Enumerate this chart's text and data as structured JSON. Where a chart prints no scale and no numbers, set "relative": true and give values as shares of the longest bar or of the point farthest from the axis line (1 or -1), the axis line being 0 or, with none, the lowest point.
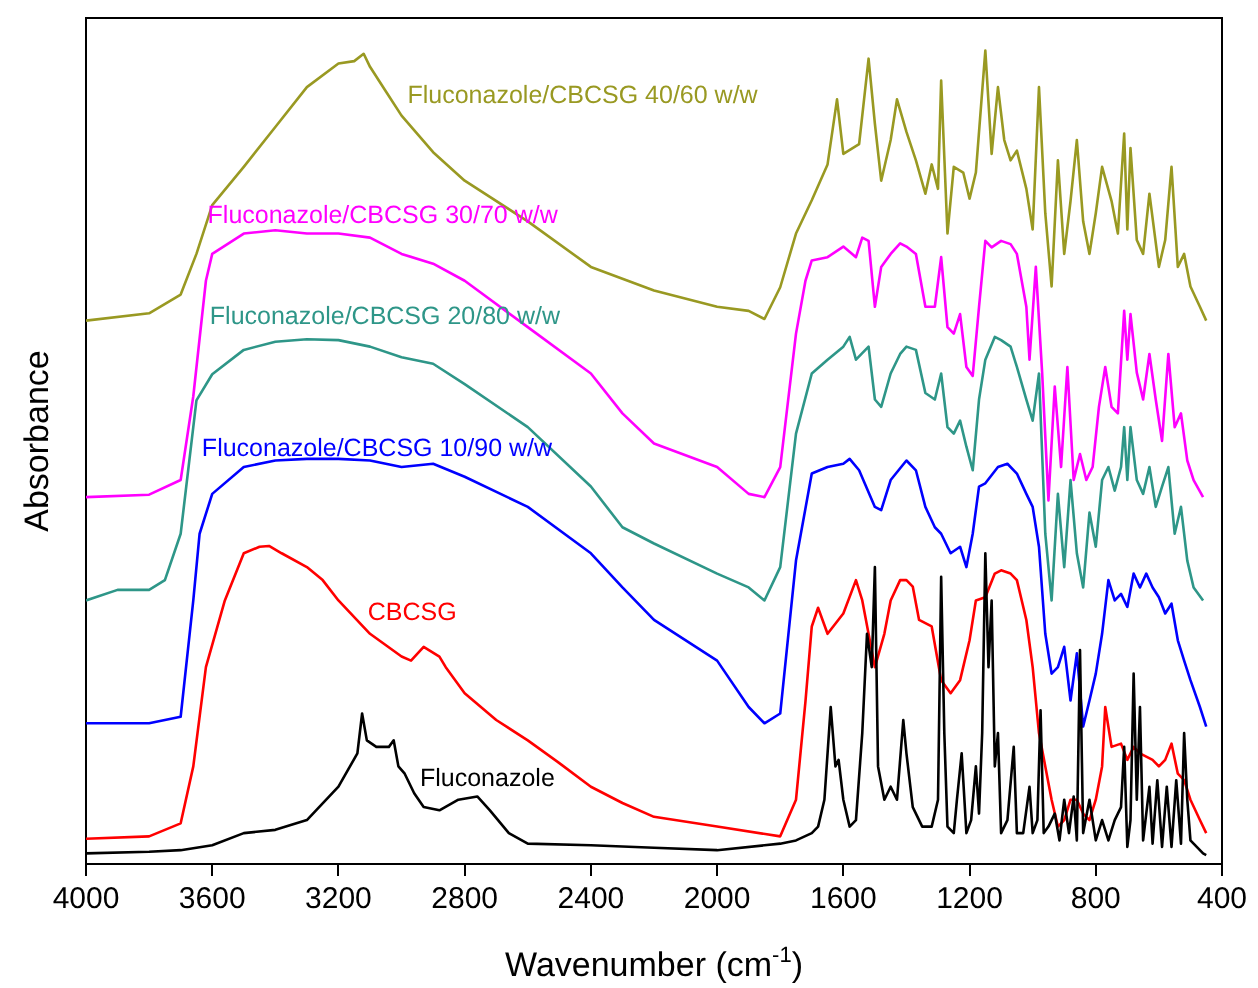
{
  "chart_data": {
    "type": "line",
    "relative": true,
    "xlabel": "Wavenumber (cm$^{-1}$)",
    "ylabel": "Absorbance",
    "xlim": [
      4000,
      400
    ],
    "xticks": [
      4000,
      3600,
      3200,
      2800,
      2400,
      2000,
      1600,
      1200,
      800,
      400
    ],
    "grid": false,
    "legend": false,
    "marker": "none",
    "line_style": "solid",
    "series": [
      {
        "name": "Fluconazole",
        "color": "#000000",
        "x": [
          4000,
          3800,
          3700,
          3600,
          3500,
          3400,
          3300,
          3200,
          3140,
          3125,
          3110,
          3080,
          3040,
          3025,
          3010,
          2990,
          2960,
          2930,
          2880,
          2820,
          2760,
          2720,
          2660,
          2600,
          2400,
          2200,
          2000,
          1800,
          1750,
          1700,
          1680,
          1660,
          1640,
          1625,
          1615,
          1600,
          1580,
          1560,
          1540,
          1525,
          1510,
          1500,
          1490,
          1470,
          1450,
          1430,
          1410,
          1400,
          1380,
          1350,
          1320,
          1300,
          1290,
          1280,
          1270,
          1250,
          1240,
          1225,
          1210,
          1195,
          1180,
          1170,
          1160,
          1150,
          1140,
          1130,
          1120,
          1110,
          1100,
          1080,
          1060,
          1050,
          1030,
          1010,
          1000,
          985,
          975,
          965,
          950,
          930,
          915,
          900,
          885,
          870,
          860,
          850,
          840,
          820,
          800,
          780,
          760,
          740,
          720,
          710,
          700,
          690,
          680,
          670,
          660,
          650,
          630,
          620,
          605,
          590,
          575,
          560,
          545,
          530,
          520,
          510,
          500,
          480,
          460,
          450
        ],
        "values": [
          0.013,
          0.015,
          0.017,
          0.023,
          0.038,
          0.042,
          0.054,
          0.095,
          0.136,
          0.185,
          0.152,
          0.144,
          0.144,
          0.152,
          0.12,
          0.111,
          0.087,
          0.07,
          0.066,
          0.079,
          0.083,
          0.066,
          0.038,
          0.025,
          0.023,
          0.02,
          0.017,
          0.025,
          0.029,
          0.038,
          0.046,
          0.079,
          0.193,
          0.12,
          0.128,
          0.079,
          0.046,
          0.054,
          0.161,
          0.283,
          0.242,
          0.365,
          0.12,
          0.079,
          0.095,
          0.079,
          0.177,
          0.136,
          0.07,
          0.046,
          0.046,
          0.079,
          0.353,
          0.161,
          0.046,
          0.038,
          0.079,
          0.136,
          0.038,
          0.054,
          0.12,
          0.062,
          0.161,
          0.382,
          0.242,
          0.324,
          0.12,
          0.161,
          0.038,
          0.054,
          0.144,
          0.038,
          0.038,
          0.095,
          0.038,
          0.054,
          0.189,
          0.038,
          0.046,
          0.062,
          0.029,
          0.079,
          0.038,
          0.083,
          0.029,
          0.263,
          0.038,
          0.079,
          0.029,
          0.054,
          0.029,
          0.054,
          0.07,
          0.144,
          0.021,
          0.054,
          0.234,
          0.079,
          0.193,
          0.029,
          0.095,
          0.025,
          0.103,
          0.021,
          0.095,
          0.021,
          0.103,
          0.025,
          0.161,
          0.079,
          0.029,
          0.021,
          0.013,
          0.011
        ]
      },
      {
        "name": "CBCSG",
        "color": "#ff0000",
        "x": [
          4000,
          3800,
          3700,
          3660,
          3620,
          3560,
          3500,
          3450,
          3420,
          3380,
          3300,
          3250,
          3200,
          3100,
          3000,
          2970,
          2930,
          2880,
          2860,
          2800,
          2700,
          2600,
          2500,
          2400,
          2300,
          2200,
          2000,
          1800,
          1750,
          1720,
          1700,
          1680,
          1650,
          1600,
          1560,
          1540,
          1500,
          1470,
          1450,
          1420,
          1400,
          1380,
          1360,
          1320,
          1290,
          1260,
          1230,
          1200,
          1180,
          1150,
          1120,
          1100,
          1070,
          1050,
          1020,
          1000,
          980,
          960,
          940,
          920,
          900,
          880,
          860,
          840,
          820,
          800,
          780,
          770,
          750,
          720,
          700,
          680,
          660,
          640,
          620,
          600,
          580,
          560,
          540,
          520,
          500,
          470,
          450
        ],
        "values": [
          0.031,
          0.034,
          0.05,
          0.12,
          0.242,
          0.324,
          0.382,
          0.39,
          0.391,
          0.382,
          0.365,
          0.349,
          0.324,
          0.283,
          0.255,
          0.25,
          0.267,
          0.255,
          0.242,
          0.21,
          0.177,
          0.152,
          0.124,
          0.095,
          0.075,
          0.058,
          0.046,
          0.034,
          0.079,
          0.2,
          0.292,
          0.315,
          0.283,
          0.308,
          0.349,
          0.324,
          0.242,
          0.283,
          0.324,
          0.349,
          0.349,
          0.341,
          0.3,
          0.292,
          0.226,
          0.21,
          0.226,
          0.275,
          0.324,
          0.328,
          0.357,
          0.361,
          0.357,
          0.349,
          0.3,
          0.242,
          0.161,
          0.12,
          0.079,
          0.046,
          0.054,
          0.079,
          0.079,
          0.062,
          0.054,
          0.079,
          0.12,
          0.193,
          0.144,
          0.148,
          0.128,
          0.144,
          0.136,
          0.132,
          0.128,
          0.12,
          0.128,
          0.148,
          0.111,
          0.103,
          0.079,
          0.054,
          0.038
        ]
      },
      {
        "name": "Fluconazole/CBCSG 10/90 w/w",
        "color": "#0000ff",
        "x": [
          4000,
          3800,
          3700,
          3660,
          3640,
          3600,
          3500,
          3400,
          3300,
          3200,
          3100,
          3000,
          2900,
          2800,
          2600,
          2400,
          2300,
          2200,
          2000,
          1900,
          1850,
          1800,
          1750,
          1700,
          1650,
          1600,
          1580,
          1550,
          1500,
          1480,
          1450,
          1400,
          1370,
          1340,
          1310,
          1290,
          1260,
          1230,
          1210,
          1190,
          1170,
          1150,
          1110,
          1080,
          1050,
          1020,
          1000,
          980,
          960,
          940,
          920,
          900,
          880,
          860,
          840,
          820,
          800,
          780,
          760,
          740,
          720,
          700,
          680,
          660,
          640,
          620,
          600,
          580,
          560,
          540,
          520,
          500,
          470,
          450
        ],
        "values": [
          0.173,
          0.173,
          0.181,
          0.324,
          0.406,
          0.455,
          0.488,
          0.496,
          0.498,
          0.498,
          0.496,
          0.488,
          0.492,
          0.476,
          0.439,
          0.382,
          0.34,
          0.3,
          0.25,
          0.193,
          0.173,
          0.185,
          0.373,
          0.48,
          0.488,
          0.492,
          0.498,
          0.484,
          0.439,
          0.435,
          0.472,
          0.496,
          0.484,
          0.439,
          0.414,
          0.406,
          0.382,
          0.39,
          0.365,
          0.406,
          0.464,
          0.468,
          0.488,
          0.492,
          0.48,
          0.455,
          0.439,
          0.39,
          0.283,
          0.234,
          0.242,
          0.267,
          0.201,
          0.259,
          0.169,
          0.201,
          0.234,
          0.283,
          0.349,
          0.324,
          0.332,
          0.316,
          0.357,
          0.34,
          0.357,
          0.34,
          0.328,
          0.308,
          0.32,
          0.275,
          0.25,
          0.226,
          0.193,
          0.169
        ]
      },
      {
        "name": "Fluconazole/CBCSG 20/80 w/w",
        "color": "#2e9688",
        "x": [
          4000,
          3900,
          3800,
          3750,
          3700,
          3650,
          3600,
          3500,
          3400,
          3300,
          3200,
          3100,
          3000,
          2900,
          2800,
          2600,
          2400,
          2300,
          2200,
          2000,
          1900,
          1850,
          1800,
          1750,
          1700,
          1650,
          1600,
          1580,
          1560,
          1520,
          1500,
          1480,
          1450,
          1420,
          1400,
          1370,
          1340,
          1310,
          1290,
          1270,
          1250,
          1230,
          1210,
          1190,
          1170,
          1150,
          1120,
          1100,
          1070,
          1050,
          1020,
          1000,
          980,
          960,
          940,
          920,
          900,
          880,
          860,
          840,
          820,
          800,
          780,
          760,
          740,
          720,
          710,
          700,
          690,
          670,
          650,
          630,
          610,
          590,
          570,
          550,
          530,
          510,
          490,
          460
        ],
        "values": [
          0.324,
          0.337,
          0.337,
          0.349,
          0.406,
          0.57,
          0.602,
          0.632,
          0.642,
          0.645,
          0.644,
          0.636,
          0.623,
          0.615,
          0.59,
          0.537,
          0.464,
          0.414,
          0.394,
          0.357,
          0.34,
          0.324,
          0.365,
          0.529,
          0.603,
          0.62,
          0.636,
          0.648,
          0.62,
          0.636,
          0.571,
          0.562,
          0.603,
          0.627,
          0.636,
          0.632,
          0.579,
          0.571,
          0.603,
          0.537,
          0.529,
          0.545,
          0.513,
          0.484,
          0.571,
          0.62,
          0.648,
          0.644,
          0.636,
          0.611,
          0.571,
          0.545,
          0.603,
          0.406,
          0.324,
          0.455,
          0.365,
          0.472,
          0.382,
          0.34,
          0.432,
          0.39,
          0.472,
          0.488,
          0.459,
          0.488,
          0.537,
          0.472,
          0.537,
          0.472,
          0.455,
          0.488,
          0.439,
          0.464,
          0.488,
          0.406,
          0.439,
          0.373,
          0.34,
          0.324
        ]
      },
      {
        "name": "Fluconazole/CBCSG 30/70 w/w",
        "color": "#ff00ff",
        "x": [
          4000,
          3800,
          3700,
          3660,
          3620,
          3600,
          3500,
          3400,
          3300,
          3200,
          3100,
          3000,
          2900,
          2800,
          2600,
          2400,
          2300,
          2200,
          2000,
          1900,
          1850,
          1800,
          1750,
          1720,
          1700,
          1650,
          1600,
          1560,
          1540,
          1520,
          1500,
          1480,
          1450,
          1420,
          1400,
          1370,
          1340,
          1310,
          1290,
          1270,
          1250,
          1230,
          1210,
          1190,
          1170,
          1150,
          1130,
          1100,
          1070,
          1050,
          1020,
          1010,
          990,
          970,
          950,
          930,
          910,
          890,
          870,
          850,
          830,
          810,
          790,
          770,
          750,
          730,
          710,
          700,
          690,
          670,
          650,
          630,
          610,
          590,
          570,
          550,
          530,
          510,
          490,
          460
        ],
        "values": [
          0.451,
          0.454,
          0.472,
          0.575,
          0.717,
          0.75,
          0.775,
          0.779,
          0.775,
          0.775,
          0.77,
          0.75,
          0.738,
          0.717,
          0.66,
          0.603,
          0.554,
          0.517,
          0.488,
          0.455,
          0.451,
          0.488,
          0.652,
          0.717,
          0.742,
          0.746,
          0.759,
          0.746,
          0.77,
          0.766,
          0.685,
          0.734,
          0.75,
          0.763,
          0.759,
          0.75,
          0.685,
          0.685,
          0.746,
          0.66,
          0.652,
          0.676,
          0.611,
          0.6,
          0.685,
          0.766,
          0.758,
          0.766,
          0.762,
          0.75,
          0.685,
          0.62,
          0.734,
          0.604,
          0.447,
          0.587,
          0.488,
          0.611,
          0.472,
          0.504,
          0.472,
          0.488,
          0.562,
          0.611,
          0.562,
          0.554,
          0.68,
          0.62,
          0.676,
          0.604,
          0.571,
          0.627,
          0.571,
          0.52,
          0.627,
          0.537,
          0.554,
          0.496,
          0.472,
          0.451
        ]
      },
      {
        "name": "Fluconazole/CBCSG 40/60 w/w",
        "color": "#999922",
        "x": [
          4000,
          3800,
          3700,
          3650,
          3600,
          3500,
          3400,
          3300,
          3200,
          3150,
          3120,
          3100,
          3050,
          3000,
          2900,
          2800,
          2600,
          2400,
          2200,
          2000,
          1900,
          1850,
          1800,
          1750,
          1700,
          1650,
          1620,
          1600,
          1550,
          1520,
          1500,
          1480,
          1450,
          1430,
          1400,
          1370,
          1340,
          1320,
          1300,
          1290,
          1270,
          1250,
          1220,
          1200,
          1180,
          1150,
          1130,
          1110,
          1090,
          1070,
          1050,
          1020,
          1000,
          980,
          960,
          940,
          920,
          900,
          880,
          860,
          840,
          820,
          800,
          780,
          750,
          730,
          710,
          700,
          690,
          670,
          650,
          630,
          600,
          580,
          560,
          540,
          520,
          500,
          470,
          450
        ],
        "values": [
          0.668,
          0.677,
          0.7,
          0.75,
          0.81,
          0.857,
          0.906,
          0.955,
          0.984,
          0.987,
          0.996,
          0.98,
          0.95,
          0.92,
          0.875,
          0.84,
          0.79,
          0.734,
          0.705,
          0.685,
          0.68,
          0.67,
          0.709,
          0.775,
          0.816,
          0.86,
          0.94,
          0.873,
          0.885,
          0.99,
          0.91,
          0.84,
          0.89,
          0.94,
          0.9,
          0.865,
          0.824,
          0.86,
          0.83,
          0.963,
          0.775,
          0.857,
          0.85,
          0.818,
          0.85,
          1,
          0.873,
          0.955,
          0.89,
          0.865,
          0.877,
          0.83,
          0.78,
          0.955,
          0.8,
          0.71,
          0.865,
          0.75,
          0.815,
          0.89,
          0.79,
          0.75,
          0.8,
          0.857,
          0.815,
          0.775,
          0.898,
          0.78,
          0.88,
          0.767,
          0.75,
          0.824,
          0.734,
          0.767,
          0.857,
          0.734,
          0.75,
          0.71,
          0.685,
          0.668
        ]
      }
    ]
  }
}
